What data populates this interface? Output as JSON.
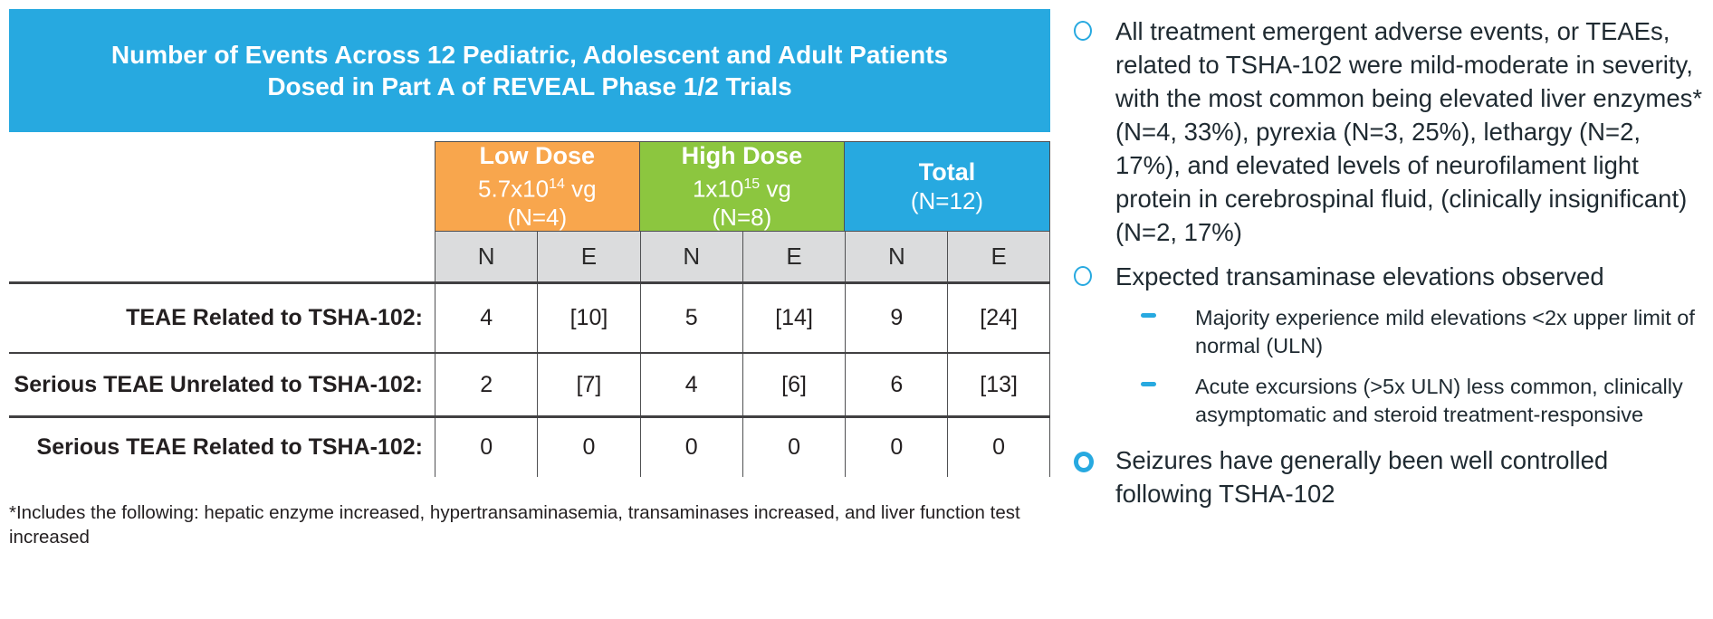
{
  "colors": {
    "accent_blue": "#27A9E0",
    "low_dose_orange": "#F8A64D",
    "high_dose_green": "#8CC63F",
    "subheader_gray": "#DBDCDD",
    "table_text": "#231F20",
    "bullet_text": "#1F2A31",
    "line_dark": "#414042"
  },
  "table": {
    "title_line1": "Number of Events Across 12 Pediatric, Adolescent and Adult Patients",
    "title_line2": "Dosed in Part A of REVEAL Phase 1/2 Trials",
    "col_groups": [
      {
        "label": "Low Dose",
        "dose_base": "5.7x10",
        "dose_exp": "14",
        "dose_unit": " vg",
        "n_label": "(N=4)"
      },
      {
        "label": "High Dose",
        "dose_base": "1x10",
        "dose_exp": "15",
        "dose_unit": " vg",
        "n_label": "(N=8)"
      },
      {
        "label": "Total",
        "n_label": "(N=12)"
      }
    ],
    "sub_headers": [
      "N",
      "E",
      "N",
      "E",
      "N",
      "E"
    ],
    "rows": [
      {
        "label": "TEAE Related to TSHA-102:",
        "values": [
          "4",
          "[10]",
          "5",
          "[14]",
          "9",
          "[24]"
        ]
      },
      {
        "label": "Serious TEAE Unrelated to TSHA-102:",
        "values": [
          "2",
          "[7]",
          "4",
          "[6]",
          "6",
          "[13]"
        ]
      },
      {
        "label": "Serious TEAE Related to TSHA-102:",
        "values": [
          "0",
          "0",
          "0",
          "0",
          "0",
          "0"
        ]
      }
    ],
    "footnote": "*Includes the following: hepatic enzyme increased, hypertransaminasemia, transaminases increased, and liver function test increased"
  },
  "panel": {
    "bullet1": "All treatment emergent adverse events, or TEAEs, related to TSHA-102 were mild-moderate in severity, with the most common being elevated liver enzymes* (N=4, 33%), pyrexia (N=3, 25%), lethargy (N=2, 17%), and elevated levels of neurofilament light protein in cerebrospinal fluid,  (clinically insignificant) (N=2, 17%)",
    "bullet2": "Expected transaminase elevations observed",
    "sub_bullet1": "Majority experience mild elevations <2x upper limit of normal (ULN)",
    "sub_bullet2": "Acute excursions (>5x ULN) less common, clinically asymptomatic and steroid treatment-responsive",
    "bullet3": "Seizures have generally been well controlled following TSHA-102"
  }
}
